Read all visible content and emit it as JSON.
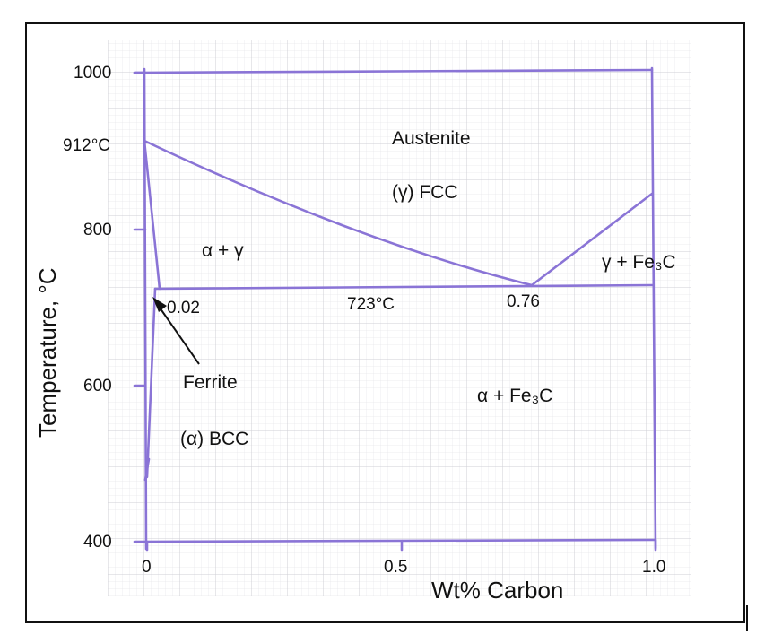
{
  "diagram": {
    "y_axis_label": "Temperature,  °C",
    "x_axis_label": "Wt% Carbon",
    "y_ticks": [
      "1000",
      "912°C",
      "800",
      "600",
      "400"
    ],
    "x_ticks": [
      "0",
      "0.5",
      "1.0"
    ],
    "regions": {
      "austenite_name": "Austenite",
      "austenite_structure": "(γ) FCC",
      "alpha_gamma": "α + γ",
      "gamma_fe3c": "γ + Fe₃C",
      "alpha_fe3c": "α + Fe₃C",
      "ferrite_name": "Ferrite",
      "ferrite_structure": "(α) BCC"
    },
    "point_labels": {
      "ferrite_limit": "0.02",
      "eutectoid_temp": "723°C",
      "eutectoid_comp": "0.76"
    },
    "line_color": "#8a74d6",
    "grid_color": "#d9d9de"
  }
}
